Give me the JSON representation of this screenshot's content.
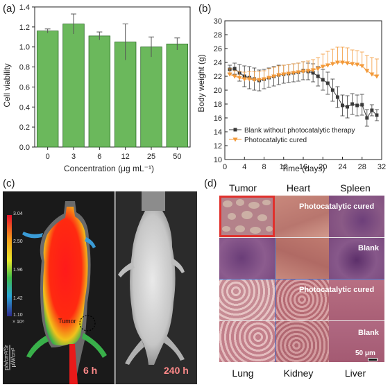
{
  "panels": {
    "a": {
      "label": "(a)"
    },
    "b": {
      "label": "(b)"
    },
    "c": {
      "label": "(c)"
    },
    "d": {
      "label": "(d)"
    }
  },
  "colors": {
    "bar_green": "#6bb85c",
    "blank_series": "#3a3a3a",
    "treated_series": "#f39a3a",
    "scalebar_red": "#d7191c",
    "scalebar_blue": "#2c3bb5"
  },
  "chart_data": [
    {
      "type": "bar",
      "categories": [
        "0",
        "3",
        "6",
        "12",
        "25",
        "50"
      ],
      "values": [
        1.16,
        1.23,
        1.11,
        1.05,
        1.0,
        1.03
      ],
      "errors": [
        0.02,
        0.1,
        0.04,
        0.18,
        0.1,
        0.06
      ],
      "xlabel": "Concentration (μg mL⁻¹)",
      "ylabel": "Cell viability",
      "ylim": [
        0,
        1.4
      ],
      "yticks": [
        "0.0",
        "0.2",
        "0.4",
        "0.6",
        "0.8",
        "1.0",
        "1.2",
        "1.4"
      ]
    },
    {
      "type": "line",
      "xlabel": "Time (days)",
      "ylabel": "Body weight (g)",
      "xlim": [
        0,
        32
      ],
      "ylim": [
        10,
        30
      ],
      "xticks": [
        "0",
        "4",
        "8",
        "12",
        "16",
        "20",
        "24",
        "28",
        "32"
      ],
      "yticks": [
        "10",
        "12",
        "14",
        "16",
        "18",
        "20",
        "22",
        "24",
        "26",
        "28",
        "30"
      ],
      "legend_position": "bottom-left",
      "series": [
        {
          "name": "Blank without photocatalytic therapy",
          "marker": "square",
          "x": [
            1,
            2,
            3,
            4,
            5,
            6,
            7,
            8,
            9,
            10,
            11,
            12,
            13,
            14,
            15,
            16,
            17,
            18,
            19,
            20,
            21,
            22,
            23,
            24,
            25,
            26,
            27,
            28,
            29,
            30,
            31
          ],
          "y": [
            23.0,
            23.1,
            22.5,
            22.0,
            21.8,
            21.6,
            21.4,
            21.6,
            21.8,
            22.0,
            22.2,
            22.3,
            22.4,
            22.5,
            22.6,
            22.8,
            22.7,
            22.5,
            22.0,
            21.5,
            21.0,
            20.0,
            19.0,
            17.8,
            17.6,
            18.0,
            17.8,
            17.9,
            16.0,
            17.1,
            16.4
          ],
          "errors": [
            0.6,
            0.8,
            1.2,
            1.5,
            1.6,
            1.6,
            1.5,
            1.4,
            1.4,
            1.4,
            1.4,
            1.3,
            1.3,
            1.3,
            1.3,
            1.3,
            1.2,
            1.3,
            1.4,
            1.5,
            1.6,
            1.6,
            1.5,
            1.5,
            1.6,
            1.5,
            1.5,
            1.5,
            1.2,
            0.8,
            0.8
          ]
        },
        {
          "name": "Photocatalytic cured",
          "marker": "triangle-down",
          "x": [
            1,
            2,
            3,
            4,
            5,
            6,
            7,
            8,
            9,
            10,
            11,
            12,
            13,
            14,
            15,
            16,
            17,
            18,
            19,
            20,
            21,
            22,
            23,
            24,
            25,
            26,
            27,
            28,
            29,
            30,
            31
          ],
          "y": [
            22.3,
            22.0,
            21.8,
            21.6,
            21.6,
            21.5,
            21.5,
            21.6,
            21.8,
            22.0,
            22.2,
            22.3,
            22.4,
            22.5,
            22.6,
            22.7,
            22.8,
            22.9,
            23.1,
            23.4,
            23.6,
            23.8,
            24.0,
            24.0,
            23.9,
            23.8,
            23.7,
            23.5,
            22.8,
            22.3,
            22.0
          ],
          "errors": [
            0.8,
            0.8,
            0.9,
            1.0,
            1.1,
            1.2,
            1.2,
            1.2,
            1.3,
            1.3,
            1.3,
            1.3,
            1.3,
            1.3,
            1.3,
            1.4,
            1.4,
            1.5,
            1.6,
            1.8,
            2.0,
            2.1,
            2.2,
            2.2,
            2.2,
            2.0,
            2.0,
            2.0,
            2.2,
            2.4,
            2.5
          ]
        }
      ]
    }
  ],
  "panel_c": {
    "colorbar_ticks": [
      "3.04",
      "2.50",
      "1.96",
      "1.42",
      "1.10"
    ],
    "colorbar_multiplier": "× 10⁸",
    "colorbar_unit_top": "p/s/cm²/Sr",
    "colorbar_unit_bottom": "μW/cm²",
    "tumor_label": "Tumor",
    "time_left": "6 h",
    "time_right": "240 h"
  },
  "panel_d": {
    "top_labels": [
      "Tumor",
      "Heart",
      "Spleen"
    ],
    "bottom_labels": [
      "Lung",
      "Kidney",
      "Liver"
    ],
    "overlay_1": "Photocatalytic cured",
    "overlay_2": "Blank",
    "overlay_3": "Photocatalytic cured",
    "overlay_4": "Blank",
    "scalebar": "50 μm"
  }
}
